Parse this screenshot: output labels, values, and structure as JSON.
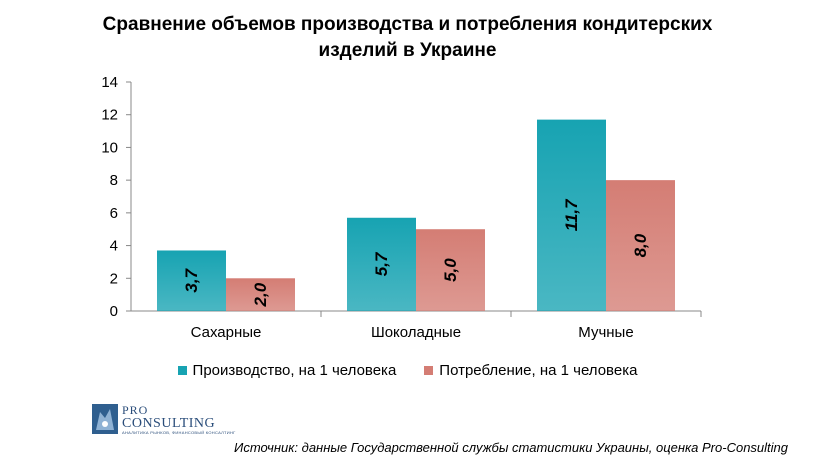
{
  "chart_data": {
    "type": "bar",
    "title": "Сравнение объемов производства и потребления кондитерских изделий в Украине",
    "title_lines": [
      "Сравнение объемов производства и потребления кондитерских",
      "изделий в Украине"
    ],
    "categories": [
      "Сахарные",
      "Шоколадные",
      "Мучные"
    ],
    "series": [
      {
        "name": "Производство,  на 1 человека",
        "values": [
          3.7,
          5.7,
          11.7
        ],
        "labels": [
          "3,7",
          "5,7",
          "11,7"
        ],
        "color": "#17a3b2"
      },
      {
        "name": "Потребление,  на 1 человека",
        "values": [
          2.0,
          5.0,
          8.0
        ],
        "labels": [
          "2,0",
          "5,0",
          "8,0"
        ],
        "color": "#d47d74"
      }
    ],
    "ylim": [
      0,
      14
    ],
    "yticks": [
      "0",
      "2",
      "4",
      "6",
      "8",
      "10",
      "12",
      "14"
    ],
    "grid": false,
    "legend_position": "bottom"
  },
  "logo": {
    "line1": "PRO",
    "line2": "CONSULTING",
    "tagline": "АНАЛИТИКА РЫНКОВ, ФИНАНСОВЫЙ КОНСАЛТИНГ"
  },
  "source": "Источник: данные Государственной службы статистики Украины, оценка Pro-Consulting"
}
